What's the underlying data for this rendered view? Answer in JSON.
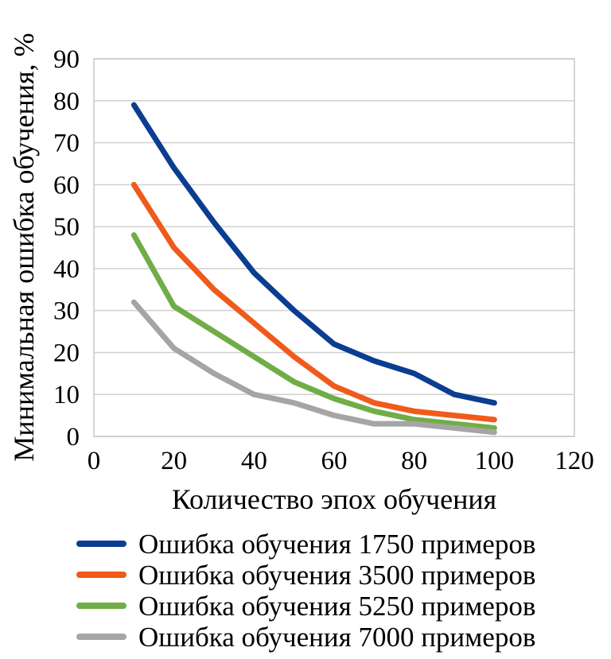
{
  "chart_data": {
    "type": "line",
    "title": "",
    "xlabel": "Количество эпох обучения",
    "ylabel": "Минимальная ошибка обучения, %",
    "xlim": [
      0,
      120
    ],
    "ylim": [
      0,
      90
    ],
    "x_ticks": [
      "0",
      "20",
      "40",
      "60",
      "80",
      "100",
      "120"
    ],
    "y_ticks": [
      "0",
      "10",
      "20",
      "30",
      "40",
      "50",
      "60",
      "70",
      "80",
      "90"
    ],
    "grid": "horizontal",
    "legend_position": "bottom",
    "x": [
      10,
      20,
      30,
      40,
      50,
      60,
      70,
      80,
      90,
      100
    ],
    "series": [
      {
        "name": "Ошибка обучения 1750 примеров",
        "color": "#0B3D91",
        "values": [
          79,
          64,
          51,
          39,
          30,
          22,
          18,
          15,
          10,
          8
        ]
      },
      {
        "name": "Ошибка обучения 3500 примеров",
        "color": "#F05A1A",
        "values": [
          60,
          45,
          35,
          27,
          19,
          12,
          8,
          6,
          5,
          4
        ]
      },
      {
        "name": "Ошибка обучения 5250 примеров",
        "color": "#70AD47",
        "values": [
          48,
          31,
          25,
          19,
          13,
          9,
          6,
          4,
          3,
          2
        ]
      },
      {
        "name": "Ошибка обучения 7000 примеров",
        "color": "#A5A5A5",
        "values": [
          32,
          21,
          15,
          10,
          8,
          5,
          3,
          3,
          2,
          1
        ]
      }
    ]
  }
}
